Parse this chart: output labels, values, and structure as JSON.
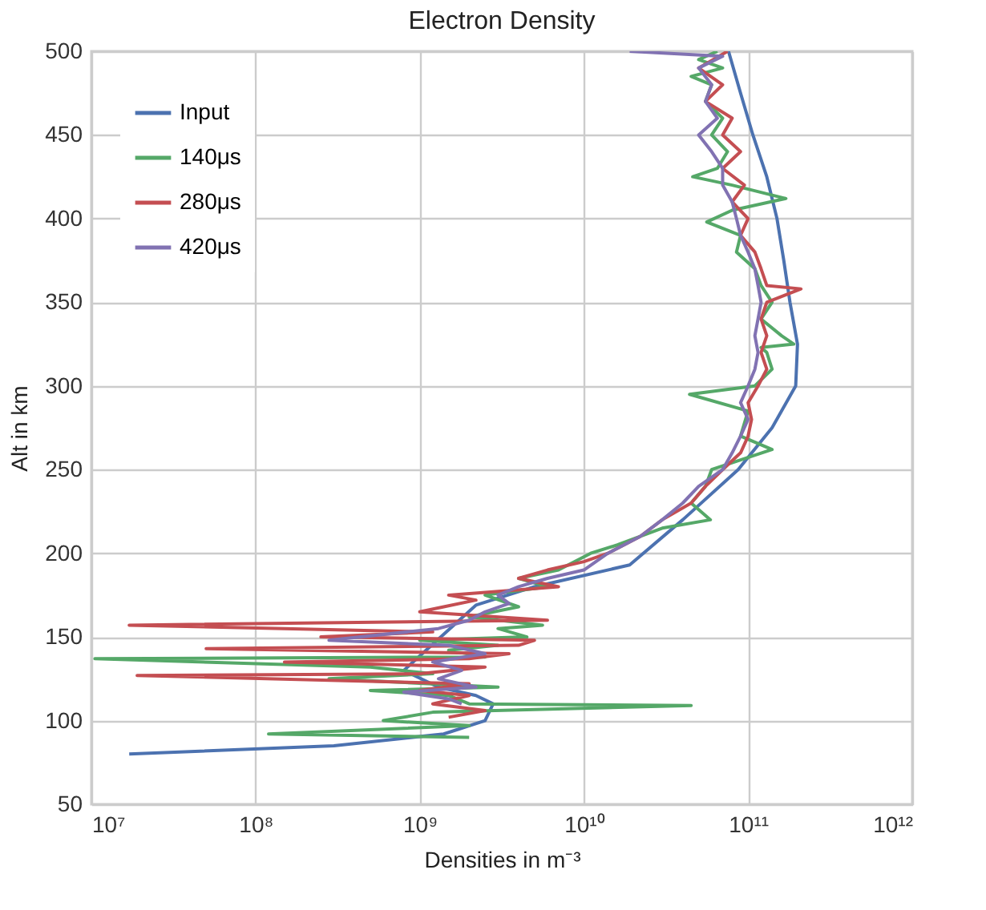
{
  "chart_data": {
    "type": "line",
    "title": "Electron Density",
    "xlabel": "Densities in m⁻³",
    "ylabel": "Alt in km",
    "log": "x",
    "grid": true,
    "legend": "top left",
    "marker": "none",
    "line_style": "solid",
    "xlim": [
      10000000.0,
      1000000000000.0
    ],
    "xticks": [
      {
        "value": 10000000.0,
        "label": "10⁷"
      },
      {
        "value": 100000000.0,
        "label": "10⁸"
      },
      {
        "value": 1000000000.0,
        "label": "10⁹"
      },
      {
        "value": 10000000000.0,
        "label": "10¹⁰"
      },
      {
        "value": 100000000000.0,
        "label": "10¹¹"
      },
      {
        "value": 1000000000000.0,
        "label": "10¹²"
      }
    ],
    "ylim": [
      50,
      500
    ],
    "yticks": [
      50,
      100,
      150,
      200,
      250,
      300,
      350,
      400,
      450,
      500
    ],
    "series": [
      {
        "name": "Input",
        "color": "#4c72b0",
        "x": [
          17000000.0,
          300000000.0,
          1400000000.0,
          2500000000.0,
          2800000000.0,
          2200000000.0,
          1300000000.0,
          800000000.0,
          2200000000.0,
          5000000000.0,
          19000000000.0,
          40000000000.0,
          87000000000.0,
          140000000000.0,
          195000000000.0,
          200000000000.0,
          180000000000.0,
          165000000000.0,
          150000000000.0,
          130000000000.0,
          107000000000.0,
          90000000000.0,
          76000000000.0
        ],
        "values": [
          80,
          85,
          92,
          100,
          110,
          115,
          120,
          130,
          169,
          180,
          193,
          220,
          250,
          275,
          300,
          325,
          350,
          375,
          400,
          425,
          450,
          475,
          500
        ]
      },
      {
        "name": "140μs",
        "color": "#55a868",
        "x": [
          2000000000.0,
          120000000.0,
          2000000000.0,
          600000000.0,
          1200000000.0,
          45000000000.0,
          2000000000.0,
          1500000000.0,
          500000000.0,
          3000000000.0,
          280000000.0,
          1200000000.0,
          500000000.0,
          10500000.0,
          2500000000.0,
          1500000000.0,
          3000000000.0,
          1000000000.0,
          4500000000.0,
          3000000000.0,
          5600000000.0,
          2000000000.0,
          4000000000.0,
          2500000000.0,
          6000000000.0,
          4000000000.0,
          7000000000.0,
          11000000000.0,
          16000000000.0,
          30000000000.0,
          59000000000.0,
          45000000000.0,
          55000000000.0,
          60000000000.0,
          140000000000.0,
          90000000000.0,
          100000000000.0,
          44000000000.0,
          110000000000.0,
          140000000000.0,
          130000000000.0,
          120000000000.0,
          190000000000.0,
          160000000000.0,
          120000000000.0,
          140000000000.0,
          120000000000.0,
          110000000000.0,
          85000000000.0,
          90000000000.0,
          56000000000.0,
          80000000000.0,
          170000000000.0,
          80000000000.0,
          46000000000.0,
          65000000000.0,
          75000000000.0,
          60000000000.0,
          70000000000.0,
          55000000000.0,
          60000000000.0,
          45000000000.0,
          70000000000.0,
          50000000000.0,
          65000000000.0
        ],
        "values": [
          90,
          92,
          97,
          100,
          105,
          109,
          110,
          115,
          118,
          120,
          125,
          128,
          132,
          137,
          138,
          142,
          145,
          148,
          150,
          155,
          157,
          162,
          168,
          175,
          180,
          185,
          190,
          200,
          205,
          215,
          220,
          230,
          240,
          250,
          262,
          270,
          285,
          295,
          300,
          310,
          320,
          323,
          325,
          330,
          340,
          350,
          360,
          370,
          380,
          390,
          398,
          405,
          412,
          420,
          425,
          430,
          440,
          450,
          460,
          470,
          480,
          485,
          490,
          495,
          500
        ]
      },
      {
        "name": "280μs",
        "color": "#c44e52",
        "x": [
          1500000000.0,
          2500000000.0,
          1200000000.0,
          2000000000.0,
          1000000000.0,
          2000000000.0,
          19000000.0,
          1000000000.0,
          2500000000.0,
          150000000.0,
          2000000000.0,
          3500000000.0,
          50000000.0,
          4000000000.0,
          5000000000.0,
          250000000.0,
          1200000000.0,
          17000000.0,
          6000000000.0,
          1000000000.0,
          1400000000.0,
          2200000000.0,
          1500000000.0,
          7000000000.0,
          4000000000.0,
          6000000000.0,
          10000000000.0,
          14000000000.0,
          22000000000.0,
          30000000000.0,
          45000000000.0,
          55000000000.0,
          70000000000.0,
          90000000000.0,
          100000000000.0,
          105000000000.0,
          100000000000.0,
          115000000000.0,
          130000000000.0,
          120000000000.0,
          130000000000.0,
          120000000000.0,
          130000000000.0,
          210000000000.0,
          130000000000.0,
          120000000000.0,
          110000000000.0,
          90000000000.0,
          100000000000.0,
          80000000000.0,
          95000000000.0,
          70000000000.0,
          90000000000.0,
          70000000000.0,
          80000000000.0,
          55000000000.0,
          70000000000.0,
          50000000000.0,
          75000000000.0
        ],
        "values": [
          102,
          106,
          110,
          115,
          118,
          122,
          127,
          128,
          132,
          135,
          137,
          140,
          143,
          145,
          148,
          150,
          153,
          157,
          160,
          165,
          168,
          172,
          175,
          180,
          185,
          190,
          195,
          200,
          210,
          220,
          230,
          240,
          250,
          260,
          270,
          280,
          290,
          300,
          310,
          320,
          330,
          340,
          350,
          358,
          360,
          370,
          380,
          390,
          400,
          410,
          420,
          430,
          440,
          450,
          460,
          470,
          480,
          490,
          500
        ]
      },
      {
        "name": "420μs",
        "color": "#8172b2",
        "x": [
          1800000000.0,
          1500000000.0,
          800000000.0,
          2200000000.0,
          1300000000.0,
          1800000000.0,
          1200000000.0,
          2500000000.0,
          1500000000.0,
          280000000.0,
          1300000000.0,
          2000000000.0,
          2500000000.0,
          3500000000.0,
          3000000000.0,
          4000000000.0,
          6000000000.0,
          10000000000.0,
          14000000000.0,
          22000000000.0,
          30000000000.0,
          40000000000.0,
          50000000000.0,
          70000000000.0,
          80000000000.0,
          90000000000.0,
          100000000000.0,
          90000000000.0,
          100000000000.0,
          110000000000.0,
          115000000000.0,
          110000000000.0,
          115000000000.0,
          120000000000.0,
          115000000000.0,
          110000000000.0,
          100000000000.0,
          90000000000.0,
          85000000000.0,
          80000000000.0,
          70000000000.0,
          70000000000.0,
          60000000000.0,
          50000000000.0,
          65000000000.0,
          55000000000.0,
          60000000000.0,
          50000000000.0,
          70000000000.0,
          19000000000.0
        ],
        "values": [
          110,
          113,
          117,
          120,
          125,
          130,
          135,
          140,
          145,
          148,
          155,
          160,
          165,
          170,
          175,
          180,
          185,
          190,
          200,
          210,
          220,
          230,
          240,
          250,
          260,
          270,
          280,
          290,
          300,
          310,
          320,
          330,
          340,
          350,
          360,
          370,
          380,
          390,
          400,
          410,
          420,
          430,
          440,
          450,
          460,
          470,
          480,
          490,
          497,
          500
        ]
      }
    ]
  }
}
